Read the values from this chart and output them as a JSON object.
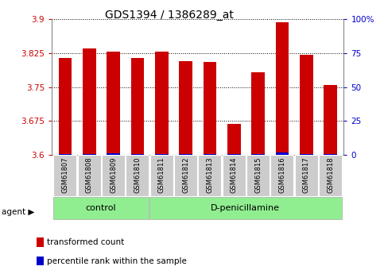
{
  "title": "GDS1394 / 1386289_at",
  "samples": [
    "GSM61807",
    "GSM61808",
    "GSM61809",
    "GSM61810",
    "GSM61811",
    "GSM61812",
    "GSM61813",
    "GSM61814",
    "GSM61815",
    "GSM61816",
    "GSM61817",
    "GSM61818"
  ],
  "red_values": [
    3.815,
    3.835,
    3.828,
    3.815,
    3.828,
    3.808,
    3.806,
    3.668,
    3.783,
    3.893,
    3.822,
    3.755
  ],
  "blue_values_abs": [
    3.602,
    3.602,
    3.604,
    3.602,
    3.602,
    3.602,
    3.602,
    3.602,
    3.602,
    3.606,
    3.602,
    3.602
  ],
  "ymin": 3.6,
  "ymax": 3.9,
  "yticks": [
    3.6,
    3.675,
    3.75,
    3.825,
    3.9
  ],
  "ytick_labels": [
    "3.6",
    "3.675",
    "3.75",
    "3.825",
    "3.9"
  ],
  "right_yticks_vals": [
    0,
    25,
    50,
    75,
    100
  ],
  "right_ytick_labels": [
    "0",
    "25",
    "50",
    "75",
    "100%"
  ],
  "groups": [
    {
      "label": "control",
      "start": 0,
      "end": 4
    },
    {
      "label": "D-penicillamine",
      "start": 4,
      "end": 12
    }
  ],
  "legend_items": [
    {
      "color": "#cc0000",
      "label": "transformed count"
    },
    {
      "color": "#0000cc",
      "label": "percentile rank within the sample"
    }
  ],
  "bar_color": "#cc0000",
  "blue_bar_color": "#0000cc",
  "group_bg_color": "#90ee90",
  "sample_bg_color": "#cccccc",
  "bar_width": 0.55,
  "title_fontsize": 10,
  "axis_fontsize": 7.5,
  "sample_fontsize": 6,
  "group_fontsize": 8,
  "legend_fontsize": 7.5
}
